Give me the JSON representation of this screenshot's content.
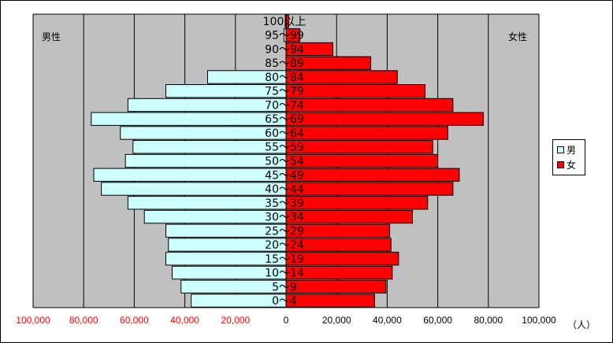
{
  "chart_data": {
    "type": "bar",
    "orientation": "horizontal",
    "categories": [
      "0～4",
      "5～9",
      "10～14",
      "15～19",
      "20～24",
      "25～29",
      "30～34",
      "35～39",
      "40～44",
      "45～49",
      "50～54",
      "55～59",
      "60～64",
      "65～69",
      "70～74",
      "75～79",
      "80～84",
      "85～89",
      "90～94",
      "95～99",
      "100以上"
    ],
    "series": [
      {
        "name": "男",
        "values": [
          37500,
          41500,
          45000,
          47500,
          46500,
          47500,
          56000,
          62500,
          73000,
          76000,
          63500,
          60500,
          65500,
          77000,
          62500,
          47500,
          31000,
          0,
          0,
          800,
          300
        ]
      },
      {
        "name": "女",
        "values": [
          35000,
          39500,
          42000,
          44500,
          41500,
          41000,
          50000,
          56000,
          66000,
          68500,
          60000,
          58000,
          64000,
          78000,
          66000,
          55000,
          44000,
          33500,
          18500,
          5500,
          1000
        ]
      }
    ],
    "xlim": [
      -100000,
      100000
    ],
    "x_ticks": [
      -100000,
      -80000,
      -60000,
      -40000,
      -20000,
      0,
      20000,
      40000,
      60000,
      80000,
      100000
    ],
    "x_tick_labels": [
      "100,000",
      "80,000",
      "60,000",
      "40,000",
      "20,000",
      "0",
      "20,000",
      "40,000",
      "60,000",
      "80,000",
      "100,000"
    ],
    "left_label": "男性",
    "right_label": "女性",
    "unit": "（人）",
    "legend": {
      "placement": "right",
      "items": [
        {
          "name": "男",
          "color": "#ccffff"
        },
        {
          "name": "女",
          "color": "#ff0000"
        }
      ]
    },
    "colors": {
      "male": "#ccffff",
      "female": "#ff0000",
      "plot_bg": "#c0c0c0",
      "negative_tick_color": "#ff0000"
    }
  }
}
